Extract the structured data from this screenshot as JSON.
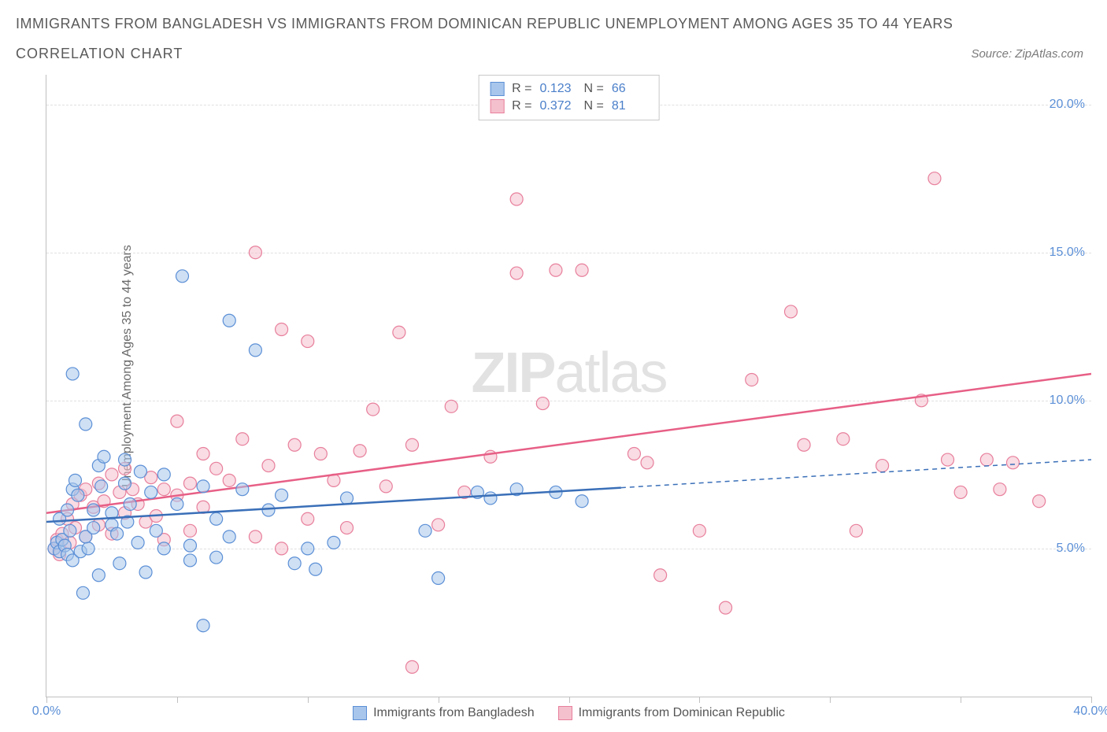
{
  "title": "IMMIGRANTS FROM BANGLADESH VS IMMIGRANTS FROM DOMINICAN REPUBLIC UNEMPLOYMENT AMONG AGES 35 TO 44 YEARS",
  "subtitle": "CORRELATION CHART",
  "source_label": "Source: ZipAtlas.com",
  "y_axis_label": "Unemployment Among Ages 35 to 44 years",
  "watermark_zip": "ZIP",
  "watermark_atlas": "atlas",
  "legend": {
    "series_a": "Immigrants from Bangladesh",
    "series_b": "Immigrants from Dominican Republic"
  },
  "stats": {
    "r_label": "R =",
    "n_label": "N =",
    "a_r": "0.123",
    "a_n": "66",
    "b_r": "0.372",
    "b_n": "81"
  },
  "chart": {
    "type": "scatter",
    "xlim": [
      0,
      40
    ],
    "ylim": [
      0,
      21
    ],
    "x_ticks": [
      0,
      5,
      10,
      15,
      20,
      25,
      30,
      35,
      40
    ],
    "x_tick_labels": {
      "0": "0.0%",
      "40": "40.0%"
    },
    "y_ticks": [
      5,
      10,
      15,
      20
    ],
    "y_tick_labels": {
      "5": "5.0%",
      "10": "10.0%",
      "15": "15.0%",
      "20": "20.0%"
    },
    "background_color": "#ffffff",
    "grid_color": "#e0e0e0",
    "axis_color": "#c0c0c0",
    "marker_radius": 8,
    "marker_stroke_width": 1.2,
    "series_a": {
      "fill": "#a8c6eb",
      "stroke": "#5b8fd6",
      "fill_opacity": 0.55,
      "trend_color": "#3a6fb8",
      "trend_width": 2.5,
      "trend_solid_end_x": 22,
      "trend": {
        "x1": 0,
        "y1": 5.9,
        "x2": 40,
        "y2": 8.0
      },
      "points": [
        [
          0.3,
          5.0
        ],
        [
          0.4,
          5.2
        ],
        [
          0.5,
          4.9
        ],
        [
          0.6,
          5.3
        ],
        [
          0.7,
          5.1
        ],
        [
          0.8,
          4.8
        ],
        [
          0.5,
          6.0
        ],
        [
          0.8,
          6.3
        ],
        [
          0.9,
          5.6
        ],
        [
          1.0,
          7.0
        ],
        [
          1.1,
          7.3
        ],
        [
          1.2,
          6.8
        ],
        [
          1.0,
          4.6
        ],
        [
          1.3,
          4.9
        ],
        [
          1.4,
          3.5
        ],
        [
          1.6,
          5.0
        ],
        [
          1.5,
          5.4
        ],
        [
          1.5,
          9.2
        ],
        [
          1.0,
          10.9
        ],
        [
          1.8,
          5.7
        ],
        [
          1.8,
          6.3
        ],
        [
          2.0,
          7.8
        ],
        [
          2.1,
          7.1
        ],
        [
          2.0,
          4.1
        ],
        [
          2.2,
          8.1
        ],
        [
          2.5,
          6.2
        ],
        [
          2.5,
          5.8
        ],
        [
          2.7,
          5.5
        ],
        [
          2.8,
          4.5
        ],
        [
          3.0,
          7.2
        ],
        [
          3.0,
          8.0
        ],
        [
          3.1,
          5.9
        ],
        [
          3.2,
          6.5
        ],
        [
          3.5,
          5.2
        ],
        [
          3.6,
          7.6
        ],
        [
          3.8,
          4.2
        ],
        [
          4.0,
          6.9
        ],
        [
          4.2,
          5.6
        ],
        [
          4.5,
          5.0
        ],
        [
          4.5,
          7.5
        ],
        [
          5.0,
          6.5
        ],
        [
          5.2,
          14.2
        ],
        [
          5.5,
          5.1
        ],
        [
          5.5,
          4.6
        ],
        [
          6.0,
          7.1
        ],
        [
          6.0,
          2.4
        ],
        [
          6.5,
          6.0
        ],
        [
          6.5,
          4.7
        ],
        [
          7.0,
          12.7
        ],
        [
          7.0,
          5.4
        ],
        [
          7.5,
          7.0
        ],
        [
          8.0,
          11.7
        ],
        [
          8.5,
          6.3
        ],
        [
          9.0,
          6.8
        ],
        [
          9.5,
          4.5
        ],
        [
          10.0,
          5.0
        ],
        [
          10.3,
          4.3
        ],
        [
          11.0,
          5.2
        ],
        [
          11.5,
          6.7
        ],
        [
          14.5,
          5.6
        ],
        [
          15.0,
          4.0
        ],
        [
          16.5,
          6.9
        ],
        [
          17.0,
          6.7
        ],
        [
          18.0,
          7.0
        ],
        [
          19.5,
          6.9
        ],
        [
          20.5,
          6.6
        ]
      ]
    },
    "series_b": {
      "fill": "#f4c0cd",
      "stroke": "#e87f9c",
      "fill_opacity": 0.55,
      "trend_color": "#e75f86",
      "trend_width": 2.5,
      "trend": {
        "x1": 0,
        "y1": 6.2,
        "x2": 40,
        "y2": 10.9
      },
      "points": [
        [
          0.3,
          5.0
        ],
        [
          0.4,
          5.3
        ],
        [
          0.5,
          4.8
        ],
        [
          0.6,
          5.5
        ],
        [
          0.8,
          6.0
        ],
        [
          0.9,
          5.2
        ],
        [
          1.0,
          6.5
        ],
        [
          1.1,
          5.7
        ],
        [
          1.3,
          6.8
        ],
        [
          1.5,
          5.4
        ],
        [
          1.5,
          7.0
        ],
        [
          1.8,
          6.4
        ],
        [
          2.0,
          7.2
        ],
        [
          2.0,
          5.8
        ],
        [
          2.2,
          6.6
        ],
        [
          2.5,
          7.5
        ],
        [
          2.5,
          5.5
        ],
        [
          2.8,
          6.9
        ],
        [
          3.0,
          7.7
        ],
        [
          3.0,
          6.2
        ],
        [
          3.3,
          7.0
        ],
        [
          3.5,
          6.5
        ],
        [
          3.8,
          5.9
        ],
        [
          4.0,
          7.4
        ],
        [
          4.2,
          6.1
        ],
        [
          4.5,
          7.0
        ],
        [
          4.5,
          5.3
        ],
        [
          5.0,
          9.3
        ],
        [
          5.0,
          6.8
        ],
        [
          5.5,
          7.2
        ],
        [
          5.5,
          5.6
        ],
        [
          6.0,
          8.2
        ],
        [
          6.0,
          6.4
        ],
        [
          6.5,
          7.7
        ],
        [
          7.0,
          7.3
        ],
        [
          7.5,
          8.7
        ],
        [
          8.0,
          5.4
        ],
        [
          8.0,
          15.0
        ],
        [
          8.5,
          7.8
        ],
        [
          9.0,
          5.0
        ],
        [
          9.0,
          12.4
        ],
        [
          9.5,
          8.5
        ],
        [
          10.0,
          6.0
        ],
        [
          10.0,
          12.0
        ],
        [
          10.5,
          8.2
        ],
        [
          11.0,
          7.3
        ],
        [
          11.5,
          5.7
        ],
        [
          12.0,
          8.3
        ],
        [
          12.5,
          9.7
        ],
        [
          13.0,
          7.1
        ],
        [
          13.5,
          12.3
        ],
        [
          14.0,
          1.0
        ],
        [
          14.0,
          8.5
        ],
        [
          15.0,
          5.8
        ],
        [
          15.5,
          9.8
        ],
        [
          16.0,
          6.9
        ],
        [
          17.0,
          8.1
        ],
        [
          18.0,
          14.3
        ],
        [
          18.0,
          16.8
        ],
        [
          19.0,
          9.9
        ],
        [
          19.5,
          14.4
        ],
        [
          20.5,
          14.4
        ],
        [
          22.5,
          8.2
        ],
        [
          23.0,
          7.9
        ],
        [
          23.5,
          4.1
        ],
        [
          25.0,
          5.6
        ],
        [
          26.0,
          3.0
        ],
        [
          27.0,
          10.7
        ],
        [
          28.5,
          13.0
        ],
        [
          29.0,
          8.5
        ],
        [
          30.5,
          8.7
        ],
        [
          31.0,
          5.6
        ],
        [
          32.0,
          7.8
        ],
        [
          33.5,
          10.0
        ],
        [
          34.0,
          17.5
        ],
        [
          34.5,
          8.0
        ],
        [
          35.0,
          6.9
        ],
        [
          36.5,
          7.0
        ],
        [
          36.0,
          8.0
        ],
        [
          37.0,
          7.9
        ],
        [
          38.0,
          6.6
        ]
      ]
    }
  }
}
